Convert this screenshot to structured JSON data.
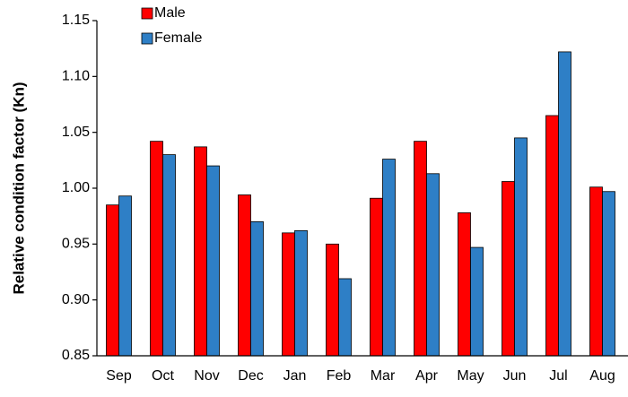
{
  "chart_data": {
    "type": "bar",
    "y_label": "Relative condition factor (Kn)",
    "categories": [
      "Sep",
      "Oct",
      "Nov",
      "Dec",
      "Jan",
      "Feb",
      "Mar",
      "Apr",
      "May",
      "Jun",
      "Jul",
      "Aug"
    ],
    "series": [
      {
        "name": "Male",
        "color": "#ff0000",
        "values": [
          0.985,
          1.042,
          1.037,
          0.994,
          0.96,
          0.95,
          0.991,
          1.042,
          0.978,
          1.006,
          1.065,
          1.001
        ]
      },
      {
        "name": "Female",
        "color": "#2e7fc6",
        "values": [
          0.993,
          1.03,
          1.02,
          0.97,
          0.962,
          0.919,
          1.026,
          1.013,
          0.947,
          1.045,
          1.122,
          0.997
        ]
      }
    ],
    "ylim": [
      0.85,
      1.15
    ],
    "yticks": [
      0.85,
      {
        "value": 0.9,
        "label": "0.90"
      },
      0.95,
      {
        "value": 1,
        "label": "1.00"
      },
      1.05,
      {
        "value": 1.1,
        "label": "1.10"
      },
      1.15
    ],
    "grid": false,
    "legend": "upper left"
  }
}
